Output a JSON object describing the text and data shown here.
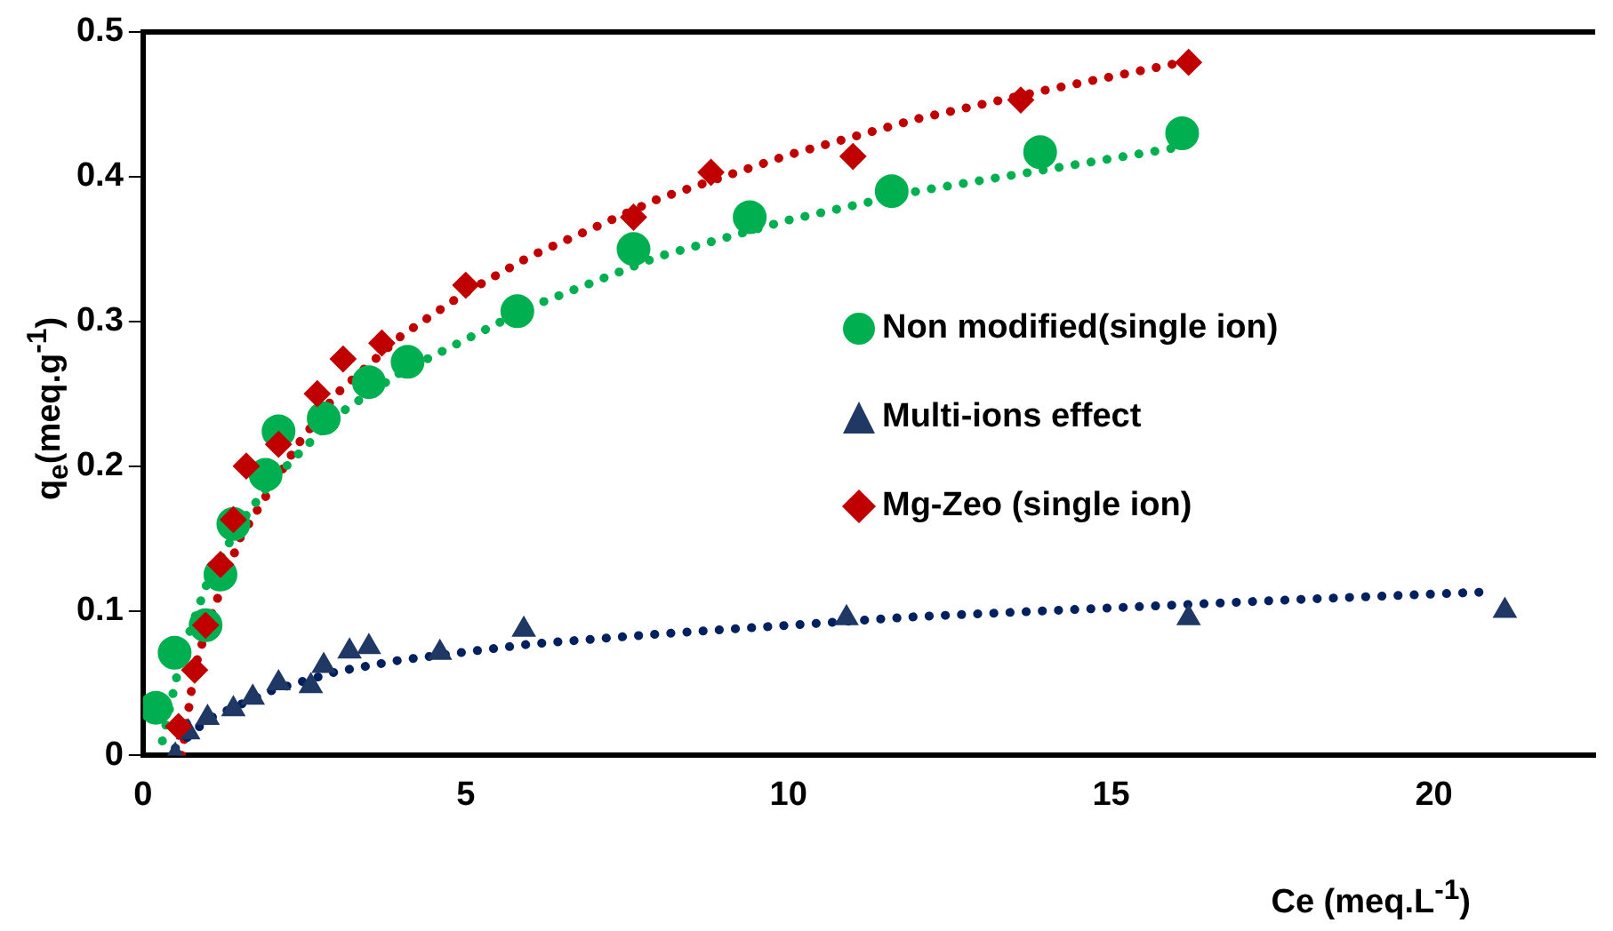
{
  "chart_data": {
    "type": "scatter",
    "xlabel": "Ce (meq.L$^{-1}$)",
    "ylabel": "q$_{e}$(meq.g$^{-1}$)",
    "xlim": [
      0,
      22.5
    ],
    "xticks": [
      0,
      5,
      10,
      15,
      20
    ],
    "ylim": [
      0,
      0.5
    ],
    "yticks": [
      0,
      0.1,
      0.2,
      0.3,
      0.4,
      0.5
    ],
    "grid": false,
    "legend": "right",
    "series": [
      {
        "name": "Non modified(single ion)",
        "color": "#00b050",
        "marker": "circle",
        "x": [
          0.2,
          0.49,
          0.97,
          1.2,
          1.4,
          1.9,
          2.1,
          2.8,
          3.5,
          4.1,
          5.8,
          7.6,
          9.4,
          11.6,
          13.9,
          16.1
        ],
        "values": [
          0.033,
          0.071,
          0.09,
          0.125,
          0.16,
          0.194,
          0.224,
          0.233,
          0.258,
          0.272,
          0.307,
          0.35,
          0.372,
          0.39,
          0.417,
          0.43
        ]
      },
      {
        "name": "Multi-ions effect",
        "color": "#1f3864",
        "marker": "triangle",
        "x": [
          0.5,
          0.7,
          1.0,
          1.4,
          1.7,
          2.1,
          2.6,
          2.8,
          3.2,
          3.5,
          4.6,
          5.9,
          10.9,
          16.2,
          21.1
        ],
        "values": [
          0.0,
          0.016,
          0.026,
          0.032,
          0.04,
          0.05,
          0.048,
          0.062,
          0.072,
          0.075,
          0.071,
          0.087,
          0.095,
          0.095,
          0.1
        ]
      },
      {
        "name": "Mg-Zeo (single ion)",
        "color": "#c00000",
        "marker": "diamond",
        "x": [
          0.55,
          0.8,
          0.97,
          1.2,
          1.4,
          1.6,
          2.1,
          2.7,
          3.1,
          3.7,
          5.0,
          7.6,
          8.8,
          11.0,
          13.6,
          16.2
        ],
        "values": [
          0.02,
          0.059,
          0.09,
          0.132,
          0.163,
          0.2,
          0.215,
          0.25,
          0.274,
          0.285,
          0.325,
          0.372,
          0.403,
          0.414,
          0.453,
          0.479
        ]
      },
      {
        "type": "line",
        "color": "#00b050",
        "line_style": "dotted",
        "marker": "none",
        "x": [
          0.3,
          0.6,
          1,
          1.5,
          2,
          3,
          4,
          6,
          8,
          10,
          12,
          14,
          16
        ],
        "values": [
          0.01,
          0.07,
          0.12,
          0.16,
          0.19,
          0.235,
          0.265,
          0.31,
          0.345,
          0.37,
          0.39,
          0.405,
          0.42
        ]
      },
      {
        "type": "line",
        "color": "#002060",
        "line_style": "dotted",
        "marker": "none",
        "x": [
          0.5,
          1,
          2,
          3,
          4,
          6,
          8,
          10,
          12,
          14,
          16,
          18,
          20.8
        ],
        "values": [
          0.005,
          0.025,
          0.045,
          0.058,
          0.066,
          0.077,
          0.084,
          0.09,
          0.096,
          0.1,
          0.104,
          0.108,
          0.113
        ]
      },
      {
        "type": "line",
        "color": "#c00000",
        "line_style": "dotted",
        "marker": "none",
        "x": [
          0.6,
          0.8,
          1,
          1.5,
          2.4,
          3,
          4,
          5,
          6,
          8,
          10,
          12,
          14,
          16.2
        ],
        "values": [
          0.0,
          0.06,
          0.09,
          0.15,
          0.215,
          0.25,
          0.29,
          0.32,
          0.345,
          0.385,
          0.415,
          0.44,
          0.46,
          0.48
        ]
      }
    ]
  }
}
